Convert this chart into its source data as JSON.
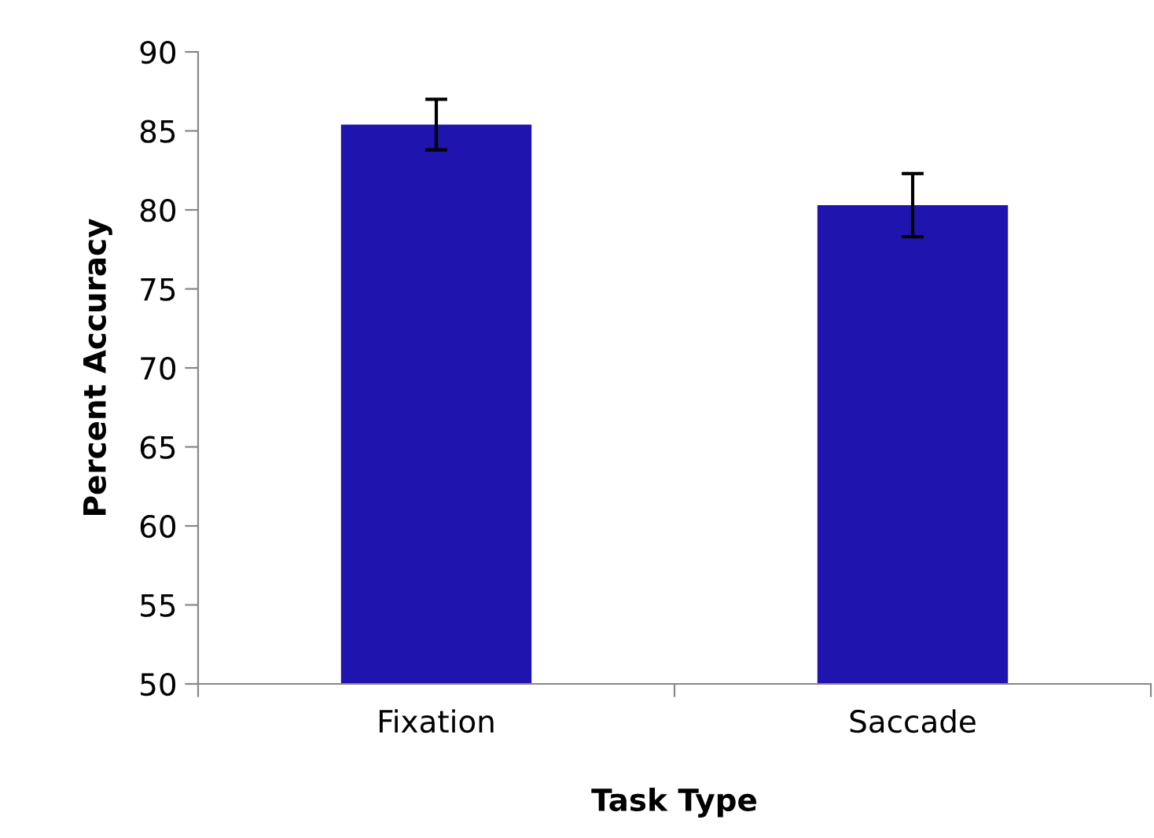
{
  "chart_data": {
    "type": "bar",
    "xlabel": "Task Type",
    "ylabel": "Percent Accuracy",
    "categories": [
      "Fixation",
      "Saccade"
    ],
    "values": [
      85.4,
      80.3
    ],
    "errors": [
      1.6,
      2.0
    ],
    "color": "#1f14ad",
    "ylim": [
      50,
      90
    ],
    "yticks": [
      50,
      55,
      60,
      65,
      70,
      75,
      80,
      85,
      90
    ],
    "grid": false,
    "legend": false
  }
}
